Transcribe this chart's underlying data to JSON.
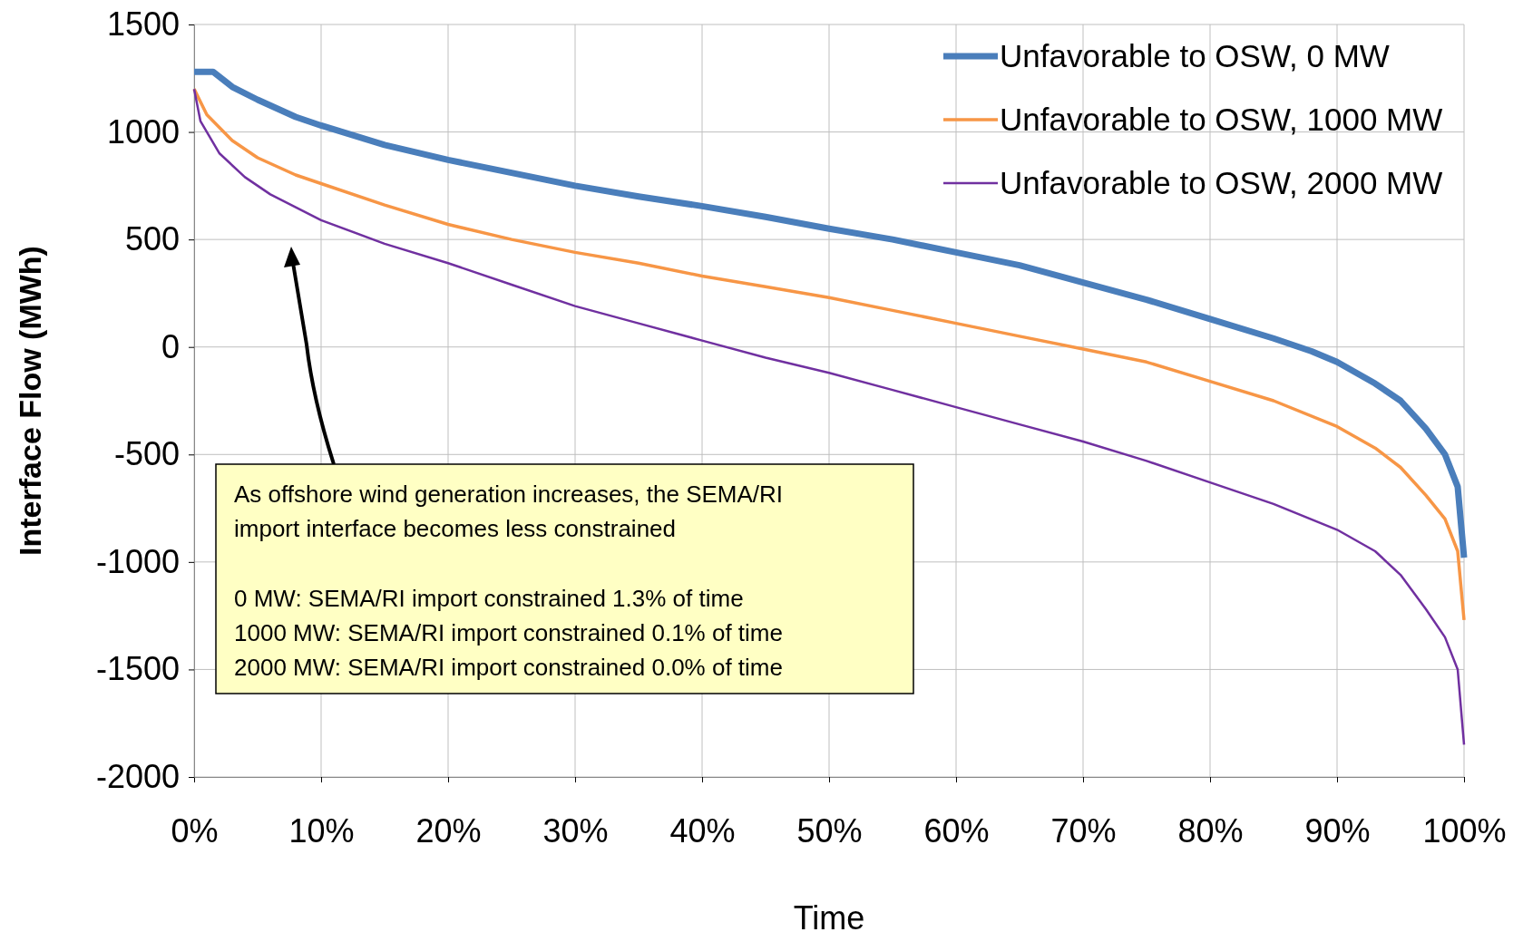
{
  "chart_data": {
    "type": "line",
    "xlabel": "Time",
    "ylabel": "Interface Flow (MWh)",
    "xlim": [
      0,
      100
    ],
    "xticks": [
      {
        "value": 0,
        "label": "0%"
      },
      {
        "value": 10,
        "label": "10%"
      },
      {
        "value": 20,
        "label": "20%"
      },
      {
        "value": 30,
        "label": "30%"
      },
      {
        "value": 40,
        "label": "40%"
      },
      {
        "value": 50,
        "label": "50%"
      },
      {
        "value": 60,
        "label": "60%"
      },
      {
        "value": 70,
        "label": "70%"
      },
      {
        "value": 80,
        "label": "80%"
      },
      {
        "value": 90,
        "label": "90%"
      },
      {
        "value": 100,
        "label": "100%"
      }
    ],
    "ylim": [
      -2000,
      1500
    ],
    "yticks": [
      -2000,
      -1500,
      -1000,
      -500,
      0,
      500,
      1000,
      1500
    ],
    "grid": true,
    "legend": "top right",
    "marker": "none",
    "line_style": "solid",
    "series": [
      {
        "name": "Unfavorable to OSW, 0 MW",
        "color": "#4a7ebb",
        "x": [
          0,
          1.5,
          3,
          5,
          8,
          10,
          15,
          20,
          25,
          30,
          35,
          40,
          45,
          50,
          55,
          60,
          65,
          70,
          75,
          80,
          85,
          88,
          90,
          93,
          95,
          97,
          98.5,
          99.5,
          100
        ],
        "values": [
          1280,
          1280,
          1210,
          1150,
          1070,
          1030,
          940,
          870,
          810,
          750,
          700,
          655,
          605,
          550,
          500,
          440,
          380,
          300,
          220,
          130,
          40,
          -20,
          -70,
          -170,
          -250,
          -380,
          -500,
          -650,
          -980
        ]
      },
      {
        "name": "Unfavorable to OSW, 1000 MW",
        "color": "#f79646",
        "x": [
          0,
          1,
          3,
          5,
          8,
          10,
          15,
          20,
          25,
          30,
          35,
          40,
          45,
          50,
          55,
          60,
          65,
          70,
          75,
          80,
          85,
          90,
          93,
          95,
          97,
          98.5,
          99.5,
          100
        ],
        "values": [
          1200,
          1080,
          960,
          880,
          800,
          760,
          660,
          570,
          500,
          440,
          390,
          330,
          280,
          230,
          170,
          110,
          50,
          -10,
          -70,
          -160,
          -250,
          -370,
          -470,
          -560,
          -690,
          -800,
          -950,
          -1270
        ]
      },
      {
        "name": "Unfavorable to OSW, 2000 MW",
        "color": "#7030a0",
        "x": [
          0,
          0.5,
          2,
          4,
          6,
          8,
          10,
          15,
          20,
          25,
          30,
          35,
          40,
          45,
          50,
          55,
          60,
          65,
          70,
          75,
          80,
          85,
          90,
          93,
          95,
          97,
          98.5,
          99.5,
          100
        ],
        "values": [
          1200,
          1050,
          900,
          790,
          710,
          650,
          590,
          480,
          390,
          290,
          190,
          110,
          30,
          -50,
          -120,
          -200,
          -280,
          -360,
          -440,
          -530,
          -630,
          -730,
          -850,
          -950,
          -1060,
          -1220,
          -1350,
          -1500,
          -1850
        ]
      }
    ],
    "annotations": [
      "As offshore wind generation increases, the SEMA/RI import interface becomes less constrained",
      "0 MW: SEMA/RI import constrained 1.3% of time",
      "1000 MW: SEMA/RI import constrained 0.1% of time",
      "2000 MW: SEMA/RI import constrained 0.0% of time"
    ]
  }
}
